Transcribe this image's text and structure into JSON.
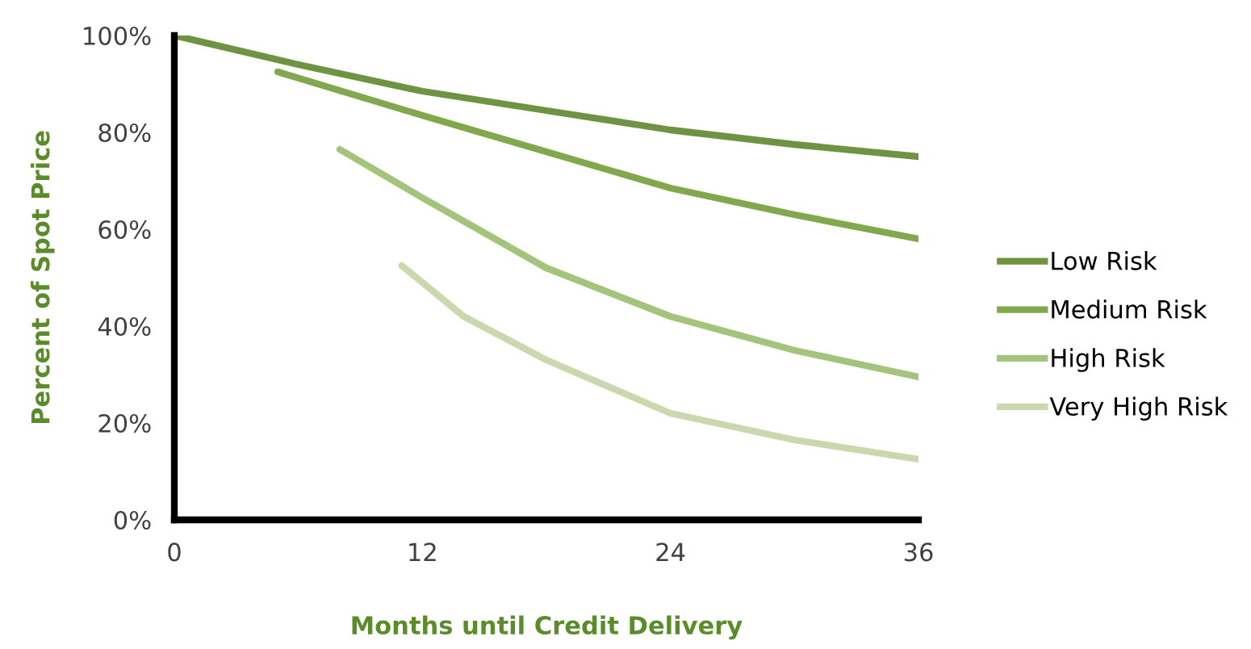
{
  "chart_data": {
    "type": "line",
    "xlabel": "Months until Credit Delivery",
    "ylabel": "Percent of Spot Price",
    "xlim": [
      0,
      36
    ],
    "xticks": [
      0,
      12,
      24,
      36
    ],
    "ylim": [
      0,
      100
    ],
    "yticks": [
      {
        "value": 0,
        "label": "0%"
      },
      {
        "value": 20,
        "label": "20%"
      },
      {
        "value": 40,
        "label": "40%"
      },
      {
        "value": 60,
        "label": "60%"
      },
      {
        "value": 80,
        "label": "80%"
      },
      {
        "value": 100,
        "label": "100%"
      }
    ],
    "grid": false,
    "legend": "right",
    "marker": "none",
    "line_style": "solid",
    "series": [
      {
        "name": "Low Risk",
        "color": "#6e9443",
        "x": [
          0,
          6,
          12,
          18,
          24,
          30,
          36
        ],
        "values": [
          100,
          94,
          88.5,
          84.5,
          80.5,
          77.5,
          75
        ]
      },
      {
        "name": "Medium Risk",
        "color": "#82a84e",
        "x": [
          5,
          12,
          18,
          24,
          30,
          36
        ],
        "values": [
          92.5,
          83.5,
          76,
          68.5,
          63,
          58
        ]
      },
      {
        "name": "High Risk",
        "color": "#a3c47a",
        "x": [
          8,
          12,
          18,
          24,
          30,
          36
        ],
        "values": [
          76.5,
          66.5,
          52,
          42,
          35,
          29.5
        ]
      },
      {
        "name": "Very High Risk",
        "color": "#c9d9ad",
        "x": [
          11,
          14,
          18,
          24,
          30,
          36
        ],
        "values": [
          52.5,
          42,
          33,
          22,
          16.5,
          12.5
        ]
      }
    ]
  }
}
